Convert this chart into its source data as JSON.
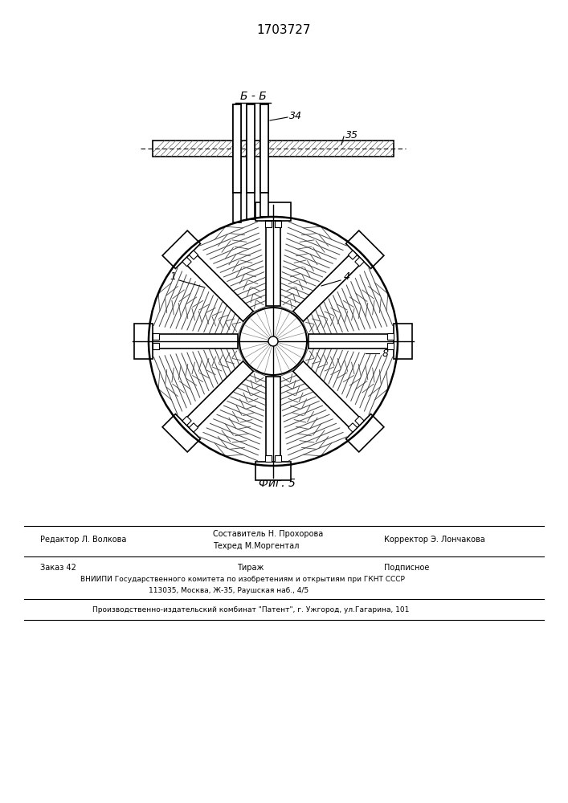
{
  "patent_number": "1703727",
  "fig_label": "Фиг. 5",
  "section_label": "Б - Б",
  "label_34": "34",
  "label_35": "35",
  "label_1": "1",
  "label_4": "4",
  "label_8": "8",
  "footer_line1_left": "Редактор Л. Волкова",
  "footer_line1_mid": "Составитель Н. Прохорова",
  "footer_line1_mid2": "Техред М.Моргентал",
  "footer_line1_right": "Корректор Э. Лончакова",
  "footer_line2_left": "Заказ 42",
  "footer_line2_mid": "Тираж",
  "footer_line2_right": "Подписное",
  "footer_line3": "ВНИИПИ Государственного комитета по изобретениям и открытиям при ГКНТ СССР",
  "footer_line4": "113035, Москва, Ж-35, Раушская наб., 4/5",
  "footer_line5": "Производственно-издательский комбинат \"Патент\", г. Ужгород, ул.Гагарина, 101",
  "bg_color": "#ffffff",
  "line_color": "#000000"
}
